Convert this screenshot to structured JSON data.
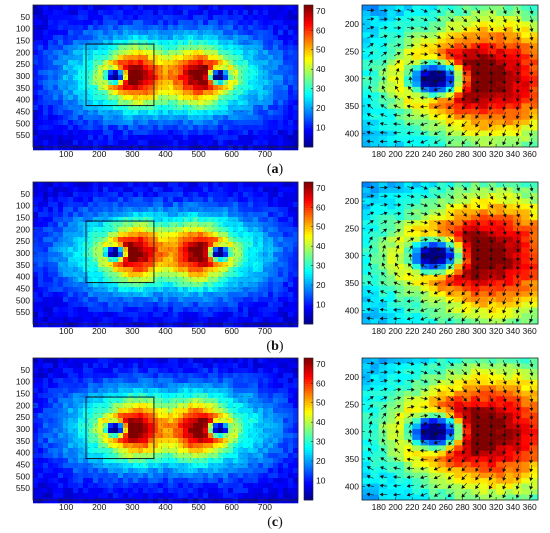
{
  "figure": {
    "rows": [
      {
        "label_open": "(",
        "label_letter": "a",
        "label_close": ")"
      },
      {
        "label_open": "(",
        "label_letter": "b",
        "label_close": ")"
      },
      {
        "label_open": "(",
        "label_letter": "c",
        "label_close": ")"
      }
    ]
  },
  "chart_data": [
    {
      "type": "heatmap",
      "panel": "main",
      "x_ticks": [
        100,
        200,
        300,
        400,
        500,
        600,
        700
      ],
      "y_ticks": [
        50,
        100,
        150,
        200,
        250,
        300,
        350,
        400,
        450,
        500,
        550
      ],
      "xlim": [
        0,
        800
      ],
      "ylim": [
        0,
        600
      ],
      "colorbar_ticks": [
        10,
        20,
        30,
        40,
        50,
        60,
        70
      ],
      "colorbar_range": [
        0,
        73
      ],
      "colormap": "jet",
      "sources": [
        {
          "x": 250,
          "y": 300,
          "value": 2
        },
        {
          "x": 560,
          "y": 300,
          "value": 2
        }
      ],
      "peak_regions": [
        {
          "x": 315,
          "y": 300,
          "value": 70
        },
        {
          "x": 495,
          "y": 300,
          "value": 70
        }
      ],
      "field": "vector arrows",
      "highlight_box": {
        "x": [
          160,
          365
        ],
        "y": [
          165,
          425
        ]
      }
    },
    {
      "type": "heatmap",
      "panel": "zoom",
      "x_ticks": [
        180,
        200,
        220,
        240,
        260,
        280,
        300,
        320,
        340,
        360
      ],
      "y_ticks": [
        200,
        250,
        300,
        350,
        400
      ],
      "xlim": [
        160,
        370
      ],
      "ylim": [
        165,
        425
      ],
      "colormap": "jet",
      "field": "vector arrows"
    }
  ],
  "colors": {
    "background": "#ffffff",
    "frame": "#222222",
    "arrow": "#111111"
  }
}
